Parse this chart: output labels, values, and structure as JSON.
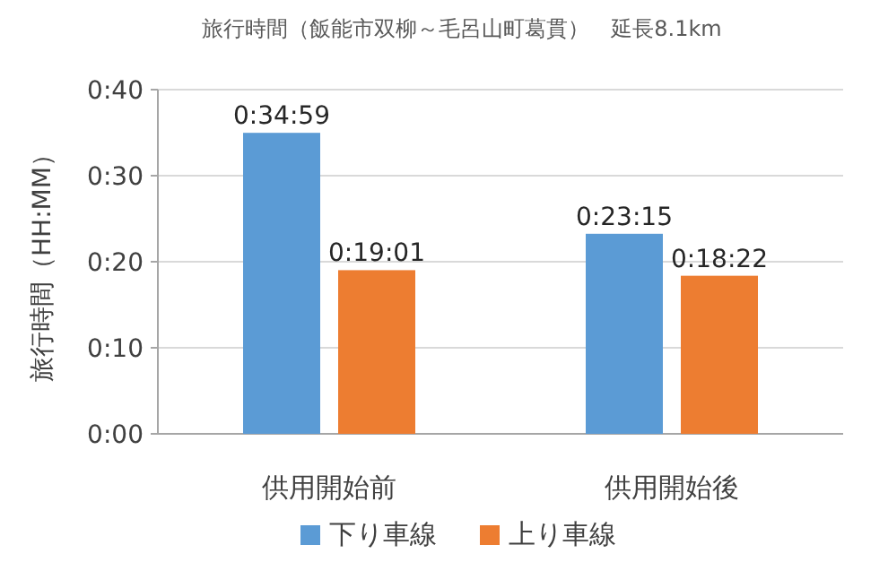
{
  "chart_data": {
    "type": "bar",
    "title": "旅行時間（飯能市双柳～毛呂山町葛貫）　延長8.1km",
    "ylabel": "旅行時間（HH:MM）",
    "categories": [
      "供用開始前",
      "供用開始後"
    ],
    "series": [
      {
        "name": "下り車線",
        "color": "#5b9bd5",
        "values": [
          34.98,
          23.25
        ],
        "value_labels": [
          "0:34:59",
          "0:23:15"
        ]
      },
      {
        "name": "上り車線",
        "color": "#ed7d31",
        "values": [
          19.02,
          18.37
        ],
        "value_labels": [
          "0:19:01",
          "0:18:22"
        ]
      }
    ],
    "ylim": [
      0,
      40
    ],
    "yticks": [
      {
        "value": 0,
        "label": "0:00"
      },
      {
        "value": 10,
        "label": "0:10"
      },
      {
        "value": 20,
        "label": "0:20"
      },
      {
        "value": 30,
        "label": "0:30"
      },
      {
        "value": 40,
        "label": "0:40"
      }
    ],
    "grid": "y",
    "legend": "bottom"
  }
}
